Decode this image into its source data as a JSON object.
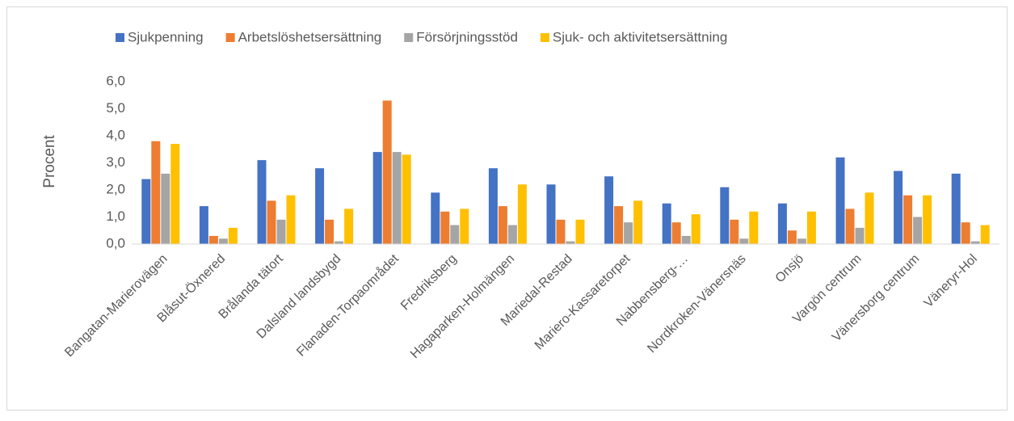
{
  "chart_data": {
    "type": "bar",
    "y_axis_label": "Procent",
    "categories": [
      "Bangatan-Marierovägen",
      "Blåsut-Öxnered",
      "Brålanda tätort",
      "Dalsland landsbygd",
      "Flanaden-Torpaområdet",
      "Fredriksberg",
      "Hagaparken-Holmängen",
      "Mariedal-Restad",
      "Mariero-Kassaretorpet",
      "Nabbensberg-…",
      "Nordkroken-Vänersnäs",
      "Onsjö",
      "Vargön centrum",
      "Vänersborg centrum",
      "Väneryr-Hol"
    ],
    "series": [
      {
        "name": "Sjukpenning",
        "color": "#4472c4",
        "values": [
          2.4,
          1.4,
          3.1,
          2.8,
          3.4,
          1.9,
          2.8,
          2.2,
          2.5,
          1.5,
          2.1,
          1.5,
          3.2,
          2.7,
          2.6
        ]
      },
      {
        "name": "Arbetslöshetsersättning",
        "color": "#ed7d31",
        "values": [
          3.8,
          0.3,
          1.6,
          0.9,
          5.3,
          1.2,
          1.4,
          0.9,
          1.4,
          0.8,
          0.9,
          0.5,
          1.3,
          1.8,
          0.8
        ]
      },
      {
        "name": "Försörjningsstöd",
        "color": "#a5a5a5",
        "values": [
          2.6,
          0.2,
          0.9,
          0.1,
          3.4,
          0.7,
          0.7,
          0.1,
          0.8,
          0.3,
          0.2,
          0.2,
          0.6,
          1.0,
          0.1
        ]
      },
      {
        "name": "Sjuk- och aktivitetsersättning",
        "color": "#ffc000",
        "values": [
          3.7,
          0.6,
          1.8,
          1.3,
          3.3,
          1.3,
          2.2,
          0.9,
          1.6,
          1.1,
          1.2,
          1.2,
          1.9,
          1.8,
          0.7
        ]
      }
    ],
    "ylim": [
      0,
      6
    ],
    "yticks": [
      {
        "value": 0,
        "label": "0,0"
      },
      {
        "value": 1,
        "label": "1,0"
      },
      {
        "value": 2,
        "label": "2,0"
      },
      {
        "value": 3,
        "label": "3,0"
      },
      {
        "value": 4,
        "label": "4,0"
      },
      {
        "value": 5,
        "label": "5,0"
      },
      {
        "value": 6,
        "label": "6,0"
      }
    ],
    "grid": false,
    "legend": "top"
  }
}
